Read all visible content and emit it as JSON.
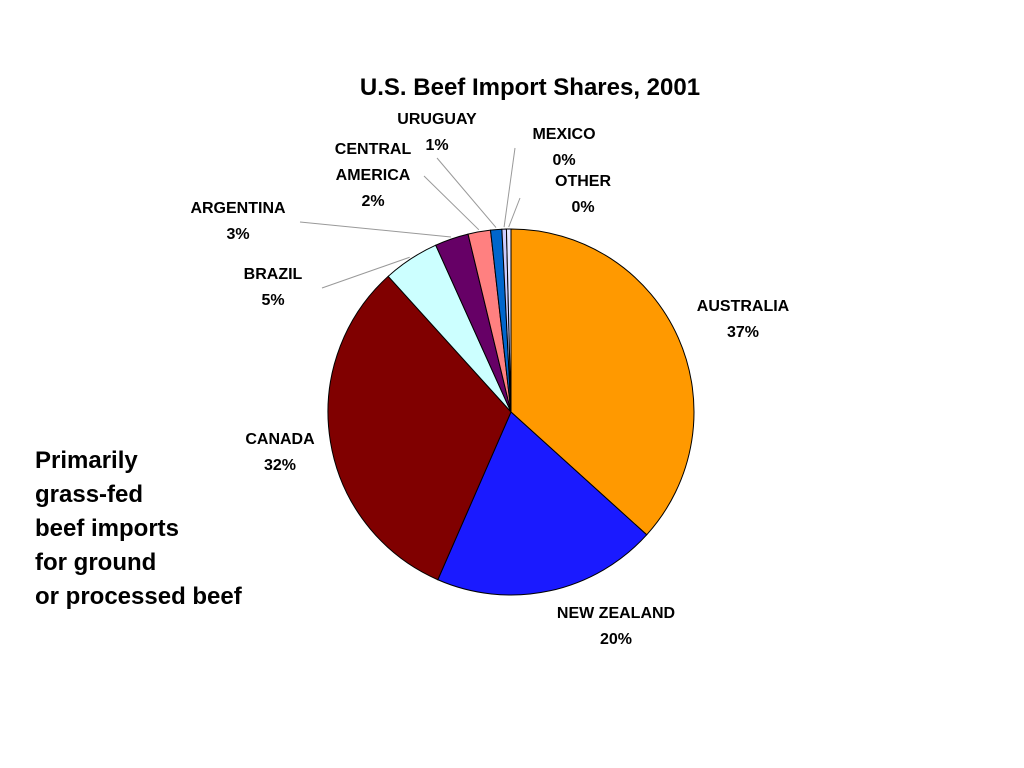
{
  "chart_data": {
    "type": "pie",
    "title": "U.S. Beef Import Shares, 2001",
    "categories": [
      "AUSTRALIA",
      "NEW ZEALAND",
      "CANADA",
      "BRAZIL",
      "ARGENTINA",
      "CENTRAL AMERICA",
      "URUGUAY",
      "MEXICO",
      "OTHER"
    ],
    "values": [
      37,
      20,
      32,
      5,
      3,
      2,
      1,
      0.4,
      0.4
    ],
    "value_labels": [
      "37%",
      "20%",
      "32%",
      "5%",
      "3%",
      "2%",
      "1%",
      "0%",
      "0%"
    ],
    "colors": [
      "#ff9900",
      "#1a1aff",
      "#800000",
      "#ccffff",
      "#660066",
      "#ff8080",
      "#0066cc",
      "#ccccff",
      "#e6e6ff"
    ],
    "annotation": [
      "Primarily",
      "grass-fed",
      "beef imports",
      "for ground",
      "or processed beef"
    ]
  }
}
